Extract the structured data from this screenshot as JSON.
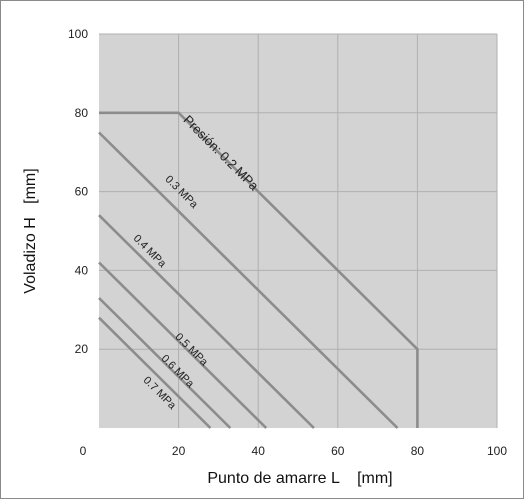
{
  "chart_data": {
    "type": "line",
    "title": "",
    "xlabel": "Punto de amarre L    [mm]",
    "ylabel": "Voladizo H   [mm]",
    "xlim": [
      0,
      100
    ],
    "ylim": [
      0,
      100
    ],
    "x_ticks": [
      "0",
      "20",
      "40",
      "60",
      "80",
      "100"
    ],
    "y_ticks": [
      "20",
      "40",
      "60",
      "80",
      "100"
    ],
    "grid": true,
    "colors": {
      "plot_bg": "#d3d3d3",
      "grid": "#b0b0b0",
      "line": "#8c8c8c",
      "frame": "#8a8a8a"
    },
    "series": [
      {
        "name": "Presión: 0.2 MPa",
        "points": [
          [
            0,
            80
          ],
          [
            20,
            80
          ],
          [
            80,
            20
          ],
          [
            80,
            0
          ]
        ]
      },
      {
        "name": "0.3 MPa",
        "points": [
          [
            0,
            75
          ],
          [
            75,
            0
          ]
        ]
      },
      {
        "name": "0.4 MPa",
        "points": [
          [
            0,
            54
          ],
          [
            54,
            0
          ]
        ]
      },
      {
        "name": "0.5 MPa",
        "points": [
          [
            0,
            42
          ],
          [
            42,
            0
          ]
        ]
      },
      {
        "name": "0.6 MPa",
        "points": [
          [
            0,
            33
          ],
          [
            33,
            0
          ]
        ]
      },
      {
        "name": "0.7 MPa",
        "points": [
          [
            0,
            28
          ],
          [
            28,
            0
          ]
        ]
      }
    ]
  }
}
